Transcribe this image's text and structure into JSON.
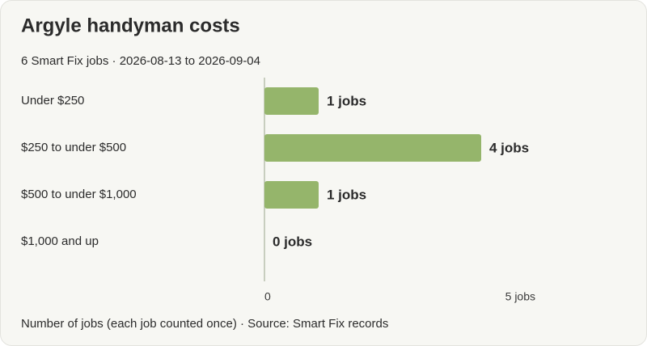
{
  "chart_data": {
    "type": "bar",
    "orientation": "horizontal",
    "title": "Argyle handyman costs",
    "subtitle": "6 Smart Fix jobs · 2026-08-13 to 2026-09-04",
    "categories": [
      "Under $250",
      "$250 to under $500",
      "$500 to under $1,000",
      "$1,000 and up"
    ],
    "values": [
      1,
      4,
      1,
      0
    ],
    "value_labels": [
      "1 jobs",
      "4 jobs",
      "1 jobs",
      "0 jobs"
    ],
    "color": "#95b56b",
    "xlim": [
      0,
      5
    ],
    "xticks": [
      0,
      {
        "value": 5,
        "label": "5 jobs"
      }
    ],
    "grid": false,
    "footnote": "Number of jobs (each job counted once) · Source: Smart Fix records"
  }
}
